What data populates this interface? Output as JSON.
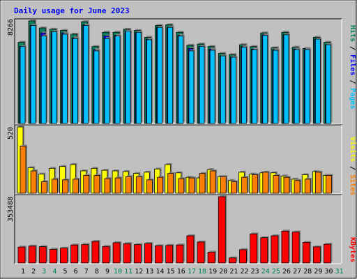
{
  "title": "Daily usage for June 2023",
  "colors": {
    "background": "#c0c0c0",
    "title": "#0000ff",
    "hits": "#00805c",
    "files": "#0000ff",
    "pages": "#00c0ff",
    "visits": "#ffff00",
    "sites": "#ff8000",
    "kbytes": "#ff0000",
    "weekend_label": "#00805c",
    "weekday_label": "#000000"
  },
  "chart_data": [
    {
      "type": "bar",
      "name": "hits-files-pages",
      "ymax_label": "8266",
      "ylim": [
        0,
        8266
      ],
      "legend": [
        "Pages",
        "Files",
        "Hits"
      ],
      "categories": [
        "1",
        "2",
        "3",
        "4",
        "5",
        "6",
        "7",
        "8",
        "9",
        "10",
        "11",
        "12",
        "13",
        "14",
        "15",
        "16",
        "17",
        "18",
        "19",
        "20",
        "21",
        "22",
        "23",
        "24",
        "25",
        "26",
        "27",
        "28",
        "29",
        "30",
        "31"
      ],
      "series": [
        {
          "name": "Hits",
          "values": [
            6550,
            8266,
            7700,
            7600,
            7500,
            7200,
            8200,
            6200,
            7350,
            7350,
            7600,
            7500,
            6950,
            7900,
            7950,
            7350,
            6300,
            6400,
            6200,
            5650,
            5550,
            6350,
            6200,
            7300,
            6100,
            7350,
            6150,
            6050,
            6950,
            6550,
            0
          ]
        },
        {
          "name": "Files",
          "values": [
            6200,
            7900,
            7300,
            7400,
            7300,
            6900,
            7950,
            5950,
            7050,
            7100,
            7450,
            7350,
            6800,
            7750,
            7750,
            7100,
            6050,
            6200,
            6000,
            5450,
            5350,
            6200,
            6000,
            7150,
            5950,
            7150,
            6000,
            5950,
            6800,
            6350,
            0
          ]
        },
        {
          "name": "Pages",
          "values": [
            6200,
            7900,
            7050,
            7400,
            7200,
            6850,
            7900,
            5850,
            6850,
            7050,
            7450,
            7350,
            6750,
            7750,
            7750,
            7050,
            5850,
            6200,
            5900,
            5450,
            5350,
            6150,
            5950,
            7100,
            5900,
            7150,
            5950,
            5950,
            6800,
            6350,
            0
          ]
        }
      ]
    },
    {
      "type": "bar",
      "name": "visits-sites",
      "ymax_label": "520",
      "ylim": [
        0,
        520
      ],
      "legend": [
        "Sites",
        "Visits"
      ],
      "categories": [
        "1",
        "2",
        "3",
        "4",
        "5",
        "6",
        "7",
        "8",
        "9",
        "10",
        "11",
        "12",
        "13",
        "14",
        "15",
        "16",
        "17",
        "18",
        "19",
        "20",
        "21",
        "22",
        "23",
        "24",
        "25",
        "26",
        "27",
        "28",
        "29",
        "30",
        "31"
      ],
      "series": [
        {
          "name": "Visits",
          "values": [
            520,
            200,
            150,
            195,
            210,
            225,
            175,
            195,
            180,
            175,
            170,
            155,
            165,
            190,
            225,
            160,
            125,
            120,
            185,
            130,
            100,
            165,
            150,
            160,
            160,
            135,
            110,
            145,
            170,
            140,
            0
          ]
        },
        {
          "name": "Sites",
          "values": [
            370,
            175,
            90,
            110,
            105,
            110,
            140,
            140,
            115,
            120,
            130,
            130,
            105,
            125,
            155,
            115,
            120,
            155,
            175,
            130,
            90,
            125,
            145,
            165,
            140,
            125,
            100,
            110,
            165,
            140,
            0
          ]
        }
      ]
    },
    {
      "type": "bar",
      "name": "kbytes",
      "ymax_label": "353488",
      "ylim": [
        0,
        353488
      ],
      "legend": [
        "KBytes"
      ],
      "categories": [
        "1",
        "2",
        "3",
        "4",
        "5",
        "6",
        "7",
        "8",
        "9",
        "10",
        "11",
        "12",
        "13",
        "14",
        "15",
        "16",
        "17",
        "18",
        "19",
        "20",
        "21",
        "22",
        "23",
        "24",
        "25",
        "26",
        "27",
        "28",
        "29",
        "30",
        "31"
      ],
      "series": [
        {
          "name": "KBytes",
          "values": [
            85000,
            90000,
            87000,
            73000,
            79000,
            96000,
            98000,
            115000,
            88000,
            108000,
            103000,
            98000,
            104000,
            92000,
            94000,
            96000,
            145000,
            112000,
            58000,
            353488,
            27000,
            71000,
            155000,
            135000,
            145000,
            170000,
            165000,
            110000,
            86000,
            100000,
            0
          ]
        }
      ]
    }
  ]
}
